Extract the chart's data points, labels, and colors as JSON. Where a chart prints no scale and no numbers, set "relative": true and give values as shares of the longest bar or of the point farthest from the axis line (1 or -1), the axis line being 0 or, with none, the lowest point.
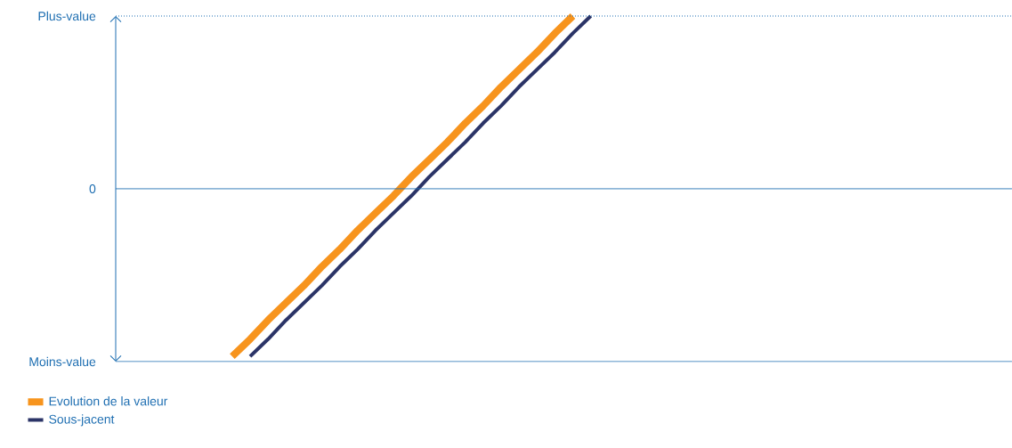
{
  "chart_data": {
    "type": "line",
    "legend": "bottom left",
    "marker": "none",
    "line_style": "solid",
    "relative": true,
    "annotations": [
      "Plus-value",
      "0",
      "Moins-value"
    ],
    "categories": [
      null,
      null,
      null,
      null,
      null,
      null,
      null,
      null,
      null,
      null,
      null,
      null,
      null,
      null,
      null,
      null,
      null,
      null,
      null,
      null,
      null,
      null,
      null,
      null,
      null,
      null,
      null,
      null,
      null,
      null,
      null,
      null,
      null,
      null,
      null,
      null,
      null,
      null,
      null,
      null,
      null,
      null,
      null,
      null,
      null,
      null,
      null,
      null,
      null,
      null
    ],
    "series": [
      {
        "name": "Evolution de la valeur",
        "color": "#f7941d",
        "values": [
          null,
          null,
          null,
          null,
          null,
          null,
          -0.97,
          -0.87,
          -0.76,
          -0.66,
          -0.56,
          -0.45,
          -0.35,
          -0.24,
          -0.14,
          -0.04,
          0.07,
          0.17,
          0.27,
          0.38,
          0.48,
          0.59,
          0.69,
          0.79,
          0.9,
          1,
          null,
          null,
          null,
          null,
          null,
          null,
          null,
          null,
          null,
          null,
          null,
          null,
          null,
          null,
          null,
          null,
          null,
          null,
          null,
          null,
          null,
          null,
          null,
          null
        ]
      },
      {
        "name": "Sous-jacent",
        "color": "#2b3467",
        "values": [
          null,
          null,
          null,
          null,
          null,
          null,
          null,
          -0.97,
          -0.87,
          -0.76,
          -0.66,
          -0.56,
          -0.45,
          -0.35,
          -0.24,
          -0.14,
          -0.04,
          0.07,
          0.17,
          0.27,
          0.38,
          0.48,
          0.59,
          0.69,
          0.79,
          0.9,
          1,
          null,
          null,
          null,
          null,
          null,
          null,
          null,
          null,
          null,
          null,
          null,
          null,
          null,
          null,
          null,
          null,
          null,
          null,
          null,
          null,
          null,
          null,
          null
        ]
      }
    ],
    "ref_lines": [
      {
        "axis": "y",
        "value": 0,
        "color": "#1f6fb2",
        "line_style": "solid"
      }
    ]
  }
}
